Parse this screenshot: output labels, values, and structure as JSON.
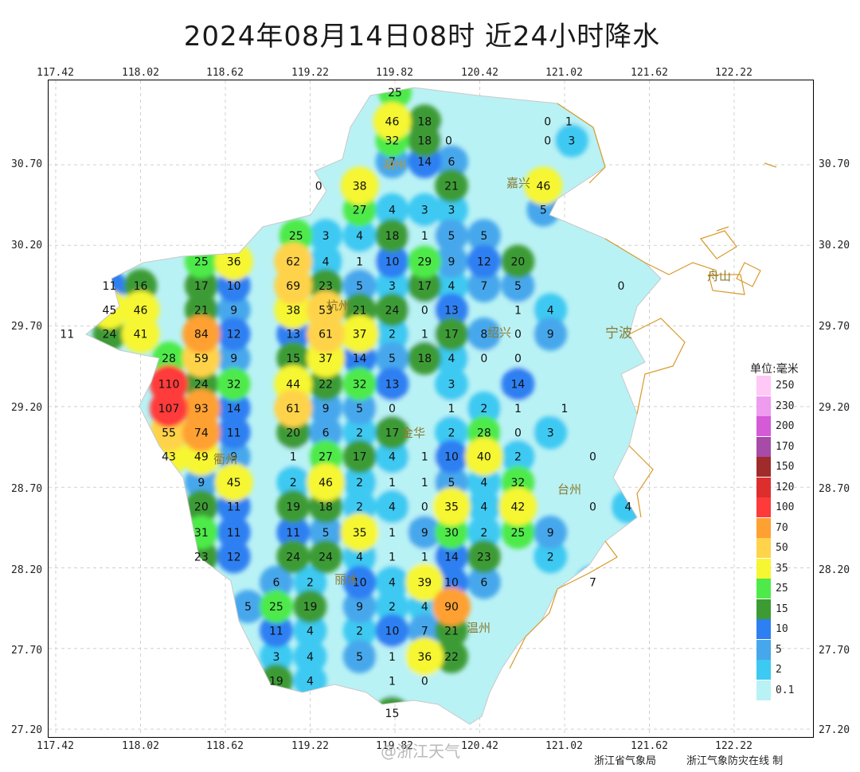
{
  "title": "2024年08月14日08时  近24小时降水",
  "x_ticks": [
    "117.42",
    "118.02",
    "118.62",
    "119.22",
    "119.82",
    "120.42",
    "121.02",
    "121.62",
    "122.22"
  ],
  "y_ticks": [
    "30.70",
    "30.20",
    "29.70",
    "29.20",
    "28.70",
    "28.20",
    "27.70",
    "27.20"
  ],
  "legend": {
    "title": "单位:毫米",
    "levels": [
      {
        "label": "250",
        "color": "#ffc8f6"
      },
      {
        "label": "230",
        "color": "#ee9bf0"
      },
      {
        "label": "200",
        "color": "#d45ad8"
      },
      {
        "label": "170",
        "color": "#a74ba8"
      },
      {
        "label": "150",
        "color": "#a02b2b"
      },
      {
        "label": "120",
        "color": "#dd2e2e"
      },
      {
        "label": "100",
        "color": "#ff3a3a"
      },
      {
        "label": "70",
        "color": "#ffa033"
      },
      {
        "label": "50",
        "color": "#ffd34a"
      },
      {
        "label": "35",
        "color": "#f6f633"
      },
      {
        "label": "25",
        "color": "#4dea4a"
      },
      {
        "label": "15",
        "color": "#3d9b34"
      },
      {
        "label": "10",
        "color": "#2d7ff2"
      },
      {
        "label": "5",
        "color": "#46a7ec"
      },
      {
        "label": "2",
        "color": "#3cc9f2"
      },
      {
        "label": "0.1",
        "color": "#b9f2f5"
      }
    ]
  },
  "cities": [
    "湖州",
    "嘉兴",
    "杭州",
    "绍兴",
    "宁波",
    "舟山",
    "金华",
    "衢州",
    "台州",
    "丽水",
    "温州"
  ],
  "stations": [
    {
      "v": "25",
      "lon": 119.82,
      "lat": 31.15
    },
    {
      "v": "46",
      "lon": 119.8,
      "lat": 30.97
    },
    {
      "v": "18",
      "lon": 120.03,
      "lat": 30.97
    },
    {
      "v": "0",
      "lon": 120.9,
      "lat": 30.97
    },
    {
      "v": "1",
      "lon": 121.05,
      "lat": 30.97
    },
    {
      "v": "32",
      "lon": 119.8,
      "lat": 30.85
    },
    {
      "v": "18",
      "lon": 120.03,
      "lat": 30.85
    },
    {
      "v": "0",
      "lon": 120.2,
      "lat": 30.85
    },
    {
      "v": "0",
      "lon": 120.9,
      "lat": 30.85
    },
    {
      "v": "3",
      "lon": 121.07,
      "lat": 30.85
    },
    {
      "v": "7",
      "lon": 119.8,
      "lat": 30.72
    },
    {
      "v": "14",
      "lon": 120.03,
      "lat": 30.72
    },
    {
      "v": "6",
      "lon": 120.22,
      "lat": 30.72
    },
    {
      "v": "0",
      "lon": 119.28,
      "lat": 30.57
    },
    {
      "v": "38",
      "lon": 119.57,
      "lat": 30.57
    },
    {
      "v": "21",
      "lon": 120.22,
      "lat": 30.57
    },
    {
      "v": "46",
      "lon": 120.87,
      "lat": 30.57
    },
    {
      "v": "27",
      "lon": 119.57,
      "lat": 30.42
    },
    {
      "v": "4",
      "lon": 119.8,
      "lat": 30.42
    },
    {
      "v": "3",
      "lon": 120.03,
      "lat": 30.42
    },
    {
      "v": "3",
      "lon": 120.22,
      "lat": 30.42
    },
    {
      "v": "5",
      "lon": 120.87,
      "lat": 30.42
    },
    {
      "v": "25",
      "lon": 119.12,
      "lat": 30.26
    },
    {
      "v": "3",
      "lon": 119.33,
      "lat": 30.26
    },
    {
      "v": "4",
      "lon": 119.57,
      "lat": 30.26
    },
    {
      "v": "18",
      "lon": 119.8,
      "lat": 30.26
    },
    {
      "v": "1",
      "lon": 120.03,
      "lat": 30.26
    },
    {
      "v": "5",
      "lon": 120.22,
      "lat": 30.26
    },
    {
      "v": "5",
      "lon": 120.45,
      "lat": 30.26
    },
    {
      "v": "25",
      "lon": 118.45,
      "lat": 30.1
    },
    {
      "v": "36",
      "lon": 118.68,
      "lat": 30.1
    },
    {
      "v": "62",
      "lon": 119.1,
      "lat": 30.1
    },
    {
      "v": "4",
      "lon": 119.33,
      "lat": 30.1
    },
    {
      "v": "1",
      "lon": 119.57,
      "lat": 30.1
    },
    {
      "v": "10",
      "lon": 119.8,
      "lat": 30.1
    },
    {
      "v": "29",
      "lon": 120.03,
      "lat": 30.1
    },
    {
      "v": "9",
      "lon": 120.22,
      "lat": 30.1
    },
    {
      "v": "12",
      "lon": 120.45,
      "lat": 30.1
    },
    {
      "v": "20",
      "lon": 120.69,
      "lat": 30.1
    },
    {
      "v": "11",
      "lon": 117.8,
      "lat": 29.95
    },
    {
      "v": "16",
      "lon": 118.02,
      "lat": 29.95
    },
    {
      "v": "17",
      "lon": 118.45,
      "lat": 29.95
    },
    {
      "v": "10",
      "lon": 118.68,
      "lat": 29.95
    },
    {
      "v": "69",
      "lon": 119.1,
      "lat": 29.95
    },
    {
      "v": "23",
      "lon": 119.33,
      "lat": 29.95
    },
    {
      "v": "5",
      "lon": 119.57,
      "lat": 29.95
    },
    {
      "v": "3",
      "lon": 119.8,
      "lat": 29.95
    },
    {
      "v": "17",
      "lon": 120.03,
      "lat": 29.95
    },
    {
      "v": "4",
      "lon": 120.22,
      "lat": 29.95
    },
    {
      "v": "7",
      "lon": 120.45,
      "lat": 29.95
    },
    {
      "v": "5",
      "lon": 120.69,
      "lat": 29.95
    },
    {
      "v": "0",
      "lon": 121.42,
      "lat": 29.95
    },
    {
      "v": "45",
      "lon": 117.8,
      "lat": 29.8
    },
    {
      "v": "46",
      "lon": 118.02,
      "lat": 29.8
    },
    {
      "v": "21",
      "lon": 118.45,
      "lat": 29.8
    },
    {
      "v": "9",
      "lon": 118.68,
      "lat": 29.8
    },
    {
      "v": "38",
      "lon": 119.1,
      "lat": 29.8
    },
    {
      "v": "53",
      "lon": 119.33,
      "lat": 29.8
    },
    {
      "v": "21",
      "lon": 119.57,
      "lat": 29.8
    },
    {
      "v": "24",
      "lon": 119.8,
      "lat": 29.8
    },
    {
      "v": "0",
      "lon": 120.03,
      "lat": 29.8
    },
    {
      "v": "13",
      "lon": 120.22,
      "lat": 29.8
    },
    {
      "v": "1",
      "lon": 120.69,
      "lat": 29.8
    },
    {
      "v": "4",
      "lon": 120.92,
      "lat": 29.8
    },
    {
      "v": "11",
      "lon": 117.5,
      "lat": 29.65
    },
    {
      "v": "24",
      "lon": 117.8,
      "lat": 29.65
    },
    {
      "v": "41",
      "lon": 118.02,
      "lat": 29.65
    },
    {
      "v": "84",
      "lon": 118.45,
      "lat": 29.65
    },
    {
      "v": "12",
      "lon": 118.68,
      "lat": 29.65
    },
    {
      "v": "13",
      "lon": 119.1,
      "lat": 29.65
    },
    {
      "v": "61",
      "lon": 119.33,
      "lat": 29.65
    },
    {
      "v": "37",
      "lon": 119.57,
      "lat": 29.65
    },
    {
      "v": "2",
      "lon": 119.8,
      "lat": 29.65
    },
    {
      "v": "1",
      "lon": 120.03,
      "lat": 29.65
    },
    {
      "v": "17",
      "lon": 120.22,
      "lat": 29.65
    },
    {
      "v": "8",
      "lon": 120.45,
      "lat": 29.65
    },
    {
      "v": "0",
      "lon": 120.69,
      "lat": 29.65
    },
    {
      "v": "9",
      "lon": 120.92,
      "lat": 29.65
    },
    {
      "v": "28",
      "lon": 118.22,
      "lat": 29.5
    },
    {
      "v": "59",
      "lon": 118.45,
      "lat": 29.5
    },
    {
      "v": "9",
      "lon": 118.68,
      "lat": 29.5
    },
    {
      "v": "15",
      "lon": 119.1,
      "lat": 29.5
    },
    {
      "v": "37",
      "lon": 119.33,
      "lat": 29.5
    },
    {
      "v": "14",
      "lon": 119.57,
      "lat": 29.5
    },
    {
      "v": "5",
      "lon": 119.8,
      "lat": 29.5
    },
    {
      "v": "18",
      "lon": 120.03,
      "lat": 29.5
    },
    {
      "v": "4",
      "lon": 120.22,
      "lat": 29.5
    },
    {
      "v": "0",
      "lon": 120.45,
      "lat": 29.5
    },
    {
      "v": "0",
      "lon": 120.69,
      "lat": 29.5
    },
    {
      "v": "110",
      "lon": 118.22,
      "lat": 29.34
    },
    {
      "v": "24",
      "lon": 118.45,
      "lat": 29.34
    },
    {
      "v": "32",
      "lon": 118.68,
      "lat": 29.34
    },
    {
      "v": "44",
      "lon": 119.1,
      "lat": 29.34
    },
    {
      "v": "22",
      "lon": 119.33,
      "lat": 29.34
    },
    {
      "v": "32",
      "lon": 119.57,
      "lat": 29.34
    },
    {
      "v": "13",
      "lon": 119.8,
      "lat": 29.34
    },
    {
      "v": "3",
      "lon": 120.22,
      "lat": 29.34
    },
    {
      "v": "14",
      "lon": 120.69,
      "lat": 29.34
    },
    {
      "v": "107",
      "lon": 118.22,
      "lat": 29.19
    },
    {
      "v": "93",
      "lon": 118.45,
      "lat": 29.19
    },
    {
      "v": "14",
      "lon": 118.68,
      "lat": 29.19
    },
    {
      "v": "61",
      "lon": 119.1,
      "lat": 29.19
    },
    {
      "v": "9",
      "lon": 119.33,
      "lat": 29.19
    },
    {
      "v": "5",
      "lon": 119.57,
      "lat": 29.19
    },
    {
      "v": "0",
      "lon": 119.8,
      "lat": 29.19
    },
    {
      "v": "1",
      "lon": 120.22,
      "lat": 29.19
    },
    {
      "v": "2",
      "lon": 120.45,
      "lat": 29.19
    },
    {
      "v": "1",
      "lon": 120.69,
      "lat": 29.19
    },
    {
      "v": "1",
      "lon": 121.02,
      "lat": 29.19
    },
    {
      "v": "55",
      "lon": 118.22,
      "lat": 29.04
    },
    {
      "v": "74",
      "lon": 118.45,
      "lat": 29.04
    },
    {
      "v": "11",
      "lon": 118.68,
      "lat": 29.04
    },
    {
      "v": "20",
      "lon": 119.1,
      "lat": 29.04
    },
    {
      "v": "6",
      "lon": 119.33,
      "lat": 29.04
    },
    {
      "v": "2",
      "lon": 119.57,
      "lat": 29.04
    },
    {
      "v": "17",
      "lon": 119.8,
      "lat": 29.04
    },
    {
      "v": "2",
      "lon": 120.22,
      "lat": 29.04
    },
    {
      "v": "28",
      "lon": 120.45,
      "lat": 29.04
    },
    {
      "v": "0",
      "lon": 120.69,
      "lat": 29.04
    },
    {
      "v": "3",
      "lon": 120.92,
      "lat": 29.04
    },
    {
      "v": "43",
      "lon": 118.22,
      "lat": 28.89
    },
    {
      "v": "49",
      "lon": 118.45,
      "lat": 28.89
    },
    {
      "v": "9",
      "lon": 118.68,
      "lat": 28.89
    },
    {
      "v": "1",
      "lon": 119.1,
      "lat": 28.89
    },
    {
      "v": "27",
      "lon": 119.33,
      "lat": 28.89
    },
    {
      "v": "17",
      "lon": 119.57,
      "lat": 28.89
    },
    {
      "v": "4",
      "lon": 119.8,
      "lat": 28.89
    },
    {
      "v": "1",
      "lon": 120.03,
      "lat": 28.89
    },
    {
      "v": "10",
      "lon": 120.22,
      "lat": 28.89
    },
    {
      "v": "40",
      "lon": 120.45,
      "lat": 28.89
    },
    {
      "v": "2",
      "lon": 120.69,
      "lat": 28.89
    },
    {
      "v": "0",
      "lon": 121.22,
      "lat": 28.89
    },
    {
      "v": "9",
      "lon": 118.45,
      "lat": 28.73
    },
    {
      "v": "45",
      "lon": 118.68,
      "lat": 28.73
    },
    {
      "v": "2",
      "lon": 119.1,
      "lat": 28.73
    },
    {
      "v": "46",
      "lon": 119.33,
      "lat": 28.73
    },
    {
      "v": "2",
      "lon": 119.57,
      "lat": 28.73
    },
    {
      "v": "1",
      "lon": 119.8,
      "lat": 28.73
    },
    {
      "v": "1",
      "lon": 120.03,
      "lat": 28.73
    },
    {
      "v": "5",
      "lon": 120.22,
      "lat": 28.73
    },
    {
      "v": "4",
      "lon": 120.45,
      "lat": 28.73
    },
    {
      "v": "32",
      "lon": 120.69,
      "lat": 28.73
    },
    {
      "v": "20",
      "lon": 118.45,
      "lat": 28.58
    },
    {
      "v": "11",
      "lon": 118.68,
      "lat": 28.58
    },
    {
      "v": "19",
      "lon": 119.1,
      "lat": 28.58
    },
    {
      "v": "18",
      "lon": 119.33,
      "lat": 28.58
    },
    {
      "v": "2",
      "lon": 119.57,
      "lat": 28.58
    },
    {
      "v": "4",
      "lon": 119.8,
      "lat": 28.58
    },
    {
      "v": "0",
      "lon": 120.03,
      "lat": 28.58
    },
    {
      "v": "35",
      "lon": 120.22,
      "lat": 28.58
    },
    {
      "v": "4",
      "lon": 120.45,
      "lat": 28.58
    },
    {
      "v": "42",
      "lon": 120.69,
      "lat": 28.58
    },
    {
      "v": "0",
      "lon": 121.22,
      "lat": 28.58
    },
    {
      "v": "4",
      "lon": 121.47,
      "lat": 28.58
    },
    {
      "v": "31",
      "lon": 118.45,
      "lat": 28.42
    },
    {
      "v": "11",
      "lon": 118.68,
      "lat": 28.42
    },
    {
      "v": "11",
      "lon": 119.1,
      "lat": 28.42
    },
    {
      "v": "5",
      "lon": 119.33,
      "lat": 28.42
    },
    {
      "v": "35",
      "lon": 119.57,
      "lat": 28.42
    },
    {
      "v": "1",
      "lon": 119.8,
      "lat": 28.42
    },
    {
      "v": "9",
      "lon": 120.03,
      "lat": 28.42
    },
    {
      "v": "30",
      "lon": 120.22,
      "lat": 28.42
    },
    {
      "v": "2",
      "lon": 120.45,
      "lat": 28.42
    },
    {
      "v": "25",
      "lon": 120.69,
      "lat": 28.42
    },
    {
      "v": "9",
      "lon": 120.92,
      "lat": 28.42
    },
    {
      "v": "23",
      "lon": 118.45,
      "lat": 28.27
    },
    {
      "v": "12",
      "lon": 118.68,
      "lat": 28.27
    },
    {
      "v": "24",
      "lon": 119.1,
      "lat": 28.27
    },
    {
      "v": "24",
      "lon": 119.33,
      "lat": 28.27
    },
    {
      "v": "4",
      "lon": 119.57,
      "lat": 28.27
    },
    {
      "v": "1",
      "lon": 119.8,
      "lat": 28.27
    },
    {
      "v": "1",
      "lon": 120.03,
      "lat": 28.27
    },
    {
      "v": "14",
      "lon": 120.22,
      "lat": 28.27
    },
    {
      "v": "23",
      "lon": 120.45,
      "lat": 28.27
    },
    {
      "v": "2",
      "lon": 120.92,
      "lat": 28.27
    },
    {
      "v": "6",
      "lon": 118.98,
      "lat": 28.11
    },
    {
      "v": "2",
      "lon": 119.22,
      "lat": 28.11
    },
    {
      "v": "10",
      "lon": 119.57,
      "lat": 28.11
    },
    {
      "v": "4",
      "lon": 119.8,
      "lat": 28.11
    },
    {
      "v": "39",
      "lon": 120.03,
      "lat": 28.11
    },
    {
      "v": "10",
      "lon": 120.22,
      "lat": 28.11
    },
    {
      "v": "6",
      "lon": 120.45,
      "lat": 28.11
    },
    {
      "v": "7",
      "lon": 121.22,
      "lat": 28.11
    },
    {
      "v": "5",
      "lon": 118.78,
      "lat": 27.96
    },
    {
      "v": "25",
      "lon": 118.98,
      "lat": 27.96
    },
    {
      "v": "19",
      "lon": 119.22,
      "lat": 27.96
    },
    {
      "v": "9",
      "lon": 119.57,
      "lat": 27.96
    },
    {
      "v": "2",
      "lon": 119.8,
      "lat": 27.96
    },
    {
      "v": "4",
      "lon": 120.03,
      "lat": 27.96
    },
    {
      "v": "90",
      "lon": 120.22,
      "lat": 27.96
    },
    {
      "v": "11",
      "lon": 118.98,
      "lat": 27.81
    },
    {
      "v": "4",
      "lon": 119.22,
      "lat": 27.81
    },
    {
      "v": "2",
      "lon": 119.57,
      "lat": 27.81
    },
    {
      "v": "10",
      "lon": 119.8,
      "lat": 27.81
    },
    {
      "v": "7",
      "lon": 120.03,
      "lat": 27.81
    },
    {
      "v": "21",
      "lon": 120.22,
      "lat": 27.81
    },
    {
      "v": "3",
      "lon": 118.98,
      "lat": 27.65
    },
    {
      "v": "4",
      "lon": 119.22,
      "lat": 27.65
    },
    {
      "v": "5",
      "lon": 119.57,
      "lat": 27.65
    },
    {
      "v": "1",
      "lon": 119.8,
      "lat": 27.65
    },
    {
      "v": "36",
      "lon": 120.03,
      "lat": 27.65
    },
    {
      "v": "22",
      "lon": 120.22,
      "lat": 27.65
    },
    {
      "v": "19",
      "lon": 118.98,
      "lat": 27.5
    },
    {
      "v": "4",
      "lon": 119.22,
      "lat": 27.5
    },
    {
      "v": "1",
      "lon": 119.8,
      "lat": 27.5
    },
    {
      "v": "0",
      "lon": 120.03,
      "lat": 27.5
    },
    {
      "v": "15",
      "lon": 119.8,
      "lat": 27.3
    }
  ],
  "footer": {
    "left": "浙江省气象局",
    "right": "浙江气象防灾在线 制"
  },
  "watermark": "@浙江天气"
}
